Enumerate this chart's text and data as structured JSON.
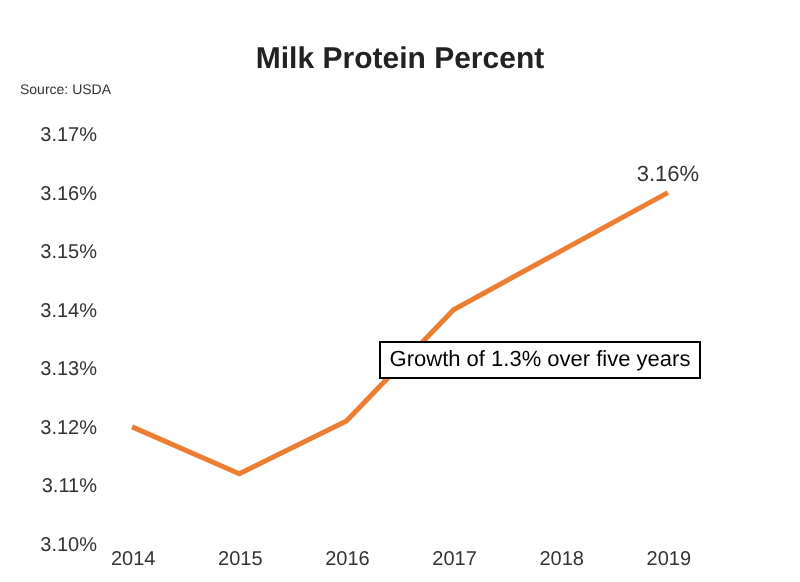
{
  "chart_data": {
    "type": "line",
    "title": "Milk Protein Percent",
    "categories": [
      "2014",
      "2015",
      "2016",
      "2017",
      "2018",
      "2019"
    ],
    "series": [
      {
        "color": "#ed7d31",
        "values": [
          3.12,
          3.112,
          3.121,
          3.14,
          3.15,
          3.16
        ],
        "value_labels": [
          null,
          null,
          null,
          null,
          null,
          "3.16%"
        ]
      }
    ],
    "ylim": [
      3.1,
      3.17
    ],
    "yticks": [
      {
        "value": 3.1,
        "label": "3.10%"
      },
      {
        "value": 3.11,
        "label": "3.11%"
      },
      {
        "value": 3.12,
        "label": "3.12%"
      },
      {
        "value": 3.13,
        "label": "3.13%"
      },
      {
        "value": 3.14,
        "label": "3.14%"
      },
      {
        "value": 3.15,
        "label": "3.15%"
      },
      {
        "value": 3.16,
        "label": "3.16%"
      },
      {
        "value": 3.17,
        "label": "3.17%"
      }
    ],
    "annotations": [
      "Source: USDA",
      "Growth of 1.3% over five years"
    ],
    "grid": false
  }
}
